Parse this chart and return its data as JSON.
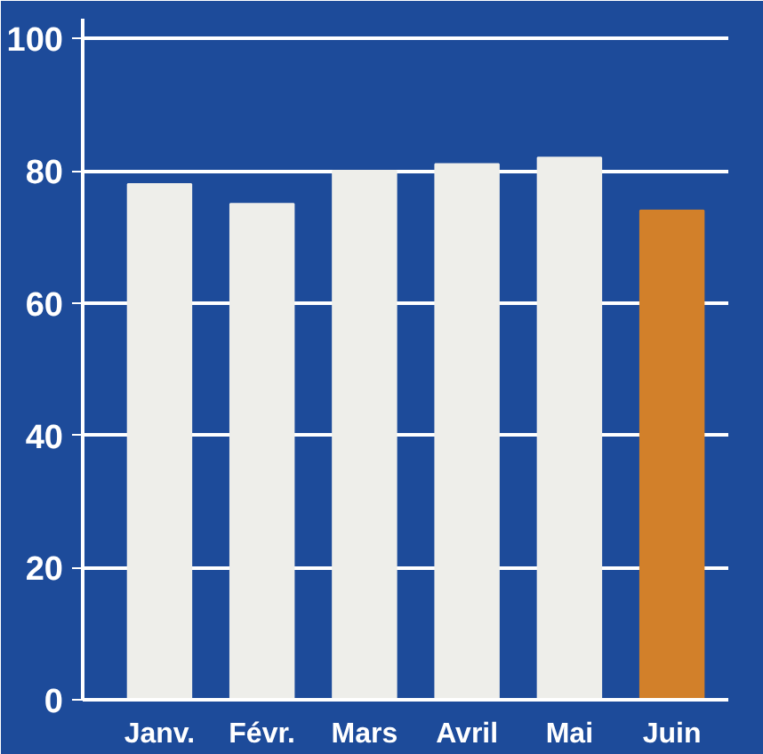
{
  "chart_data": {
    "type": "bar",
    "categories": [
      "Janv.",
      "Févr.",
      "Mars",
      "Avril",
      "Mai",
      "Juin"
    ],
    "values": [
      78,
      75,
      80,
      81,
      82,
      74
    ],
    "colors": [
      "#eeeeea",
      "#eeeeea",
      "#eeeeea",
      "#eeeeea",
      "#eeeeea",
      "#d2802a"
    ],
    "ylim": [
      0,
      100
    ],
    "yticks": [
      0,
      20,
      40,
      60,
      80,
      100
    ],
    "grid": "y"
  }
}
